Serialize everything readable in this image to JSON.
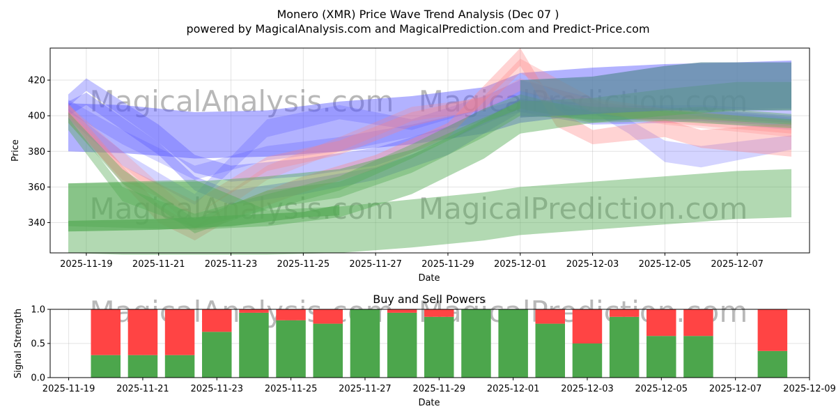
{
  "title_line1": "Monero (XMR) Price Wave Trend Analysis (Dec 07 )",
  "title_line2": "powered by MagicalAnalysis.com and MagicalPrediction.com and Predict-Price.com",
  "watermarks": [
    "MagicalAnalysis.com",
    "MagicalPrediction.com",
    "MagicalAnalysis.com",
    "MagicalPrediction.com",
    "MagicalAnalysis.com",
    "MagicalPrediction.com"
  ],
  "colors": {
    "buy": "#4ca64c",
    "sell": "#ff4444",
    "blue": "#5555ff",
    "red": "#ff8080",
    "green": "#55aa55",
    "teal": "#5a8a9a"
  },
  "chart_data": [
    {
      "type": "area",
      "title": "",
      "xlabel": "Date",
      "ylabel": "Price",
      "xlim": [
        "2025-11-18",
        "2025-12-09"
      ],
      "ylim": [
        323,
        438
      ],
      "yticks": [
        340,
        360,
        380,
        400,
        420
      ],
      "xticks": [
        {
          "date": "2025-11-19",
          "label": "2025-11-19"
        },
        {
          "date": "2025-11-21",
          "label": "2025-11-21"
        },
        {
          "date": "2025-11-23",
          "label": "2025-11-23"
        },
        {
          "date": "2025-11-25",
          "label": "2025-11-25"
        },
        {
          "date": "2025-11-27",
          "label": "2025-11-27"
        },
        {
          "date": "2025-11-29",
          "label": "2025-11-29"
        },
        {
          "date": "2025-12-01",
          "label": "2025-12-01"
        },
        {
          "date": "2025-12-03",
          "label": "2025-12-03"
        },
        {
          "date": "2025-12-05",
          "label": "2025-12-05"
        },
        {
          "date": "2025-12-07",
          "label": "2025-12-07"
        }
      ],
      "bands": [
        {
          "name": "blue-wide",
          "color": "blue",
          "opacity": 0.45,
          "x": [
            "2025-11-18T12",
            "2025-11-20",
            "2025-11-22",
            "2025-11-24",
            "2025-11-26",
            "2025-11-28",
            "2025-11-30",
            "2025-12-01",
            "2025-12-03",
            "2025-12-05",
            "2025-12-07",
            "2025-12-08T12"
          ],
          "upper": [
            407,
            406,
            402,
            403,
            408,
            411,
            416,
            424,
            427,
            429,
            430,
            431
          ],
          "lower": [
            380,
            379,
            376,
            377,
            380,
            384,
            390,
            396,
            401,
            403,
            404,
            404
          ]
        },
        {
          "name": "blue-1",
          "color": "blue",
          "opacity": 0.35,
          "x": [
            "2025-11-18T12",
            "2025-11-19",
            "2025-11-21",
            "2025-11-22",
            "2025-11-23",
            "2025-11-25",
            "2025-11-27",
            "2025-11-29",
            "2025-12-01",
            "2025-12-03",
            "2025-12-05",
            "2025-12-06",
            "2025-12-08T12"
          ],
          "upper": [
            412,
            421,
            395,
            378,
            372,
            376,
            382,
            394,
            414,
            405,
            406,
            406,
            403
          ],
          "lower": [
            405,
            414,
            385,
            368,
            363,
            366,
            372,
            386,
            404,
            397,
            398,
            399,
            396
          ]
        },
        {
          "name": "blue-2",
          "color": "blue",
          "opacity": 0.35,
          "x": [
            "2025-11-18T12",
            "2025-11-19",
            "2025-11-21",
            "2025-11-22",
            "2025-11-23",
            "2025-11-25",
            "2025-11-27",
            "2025-11-29",
            "2025-12-01",
            "2025-12-03",
            "2025-12-05",
            "2025-12-06",
            "2025-12-08T12"
          ],
          "upper": [
            408,
            413,
            385,
            366,
            358,
            364,
            371,
            386,
            410,
            402,
            403,
            404,
            400
          ],
          "lower": [
            400,
            406,
            378,
            358,
            350,
            356,
            364,
            378,
            402,
            395,
            396,
            397,
            394
          ]
        },
        {
          "name": "blue-3",
          "color": "blue",
          "opacity": 0.25,
          "x": [
            "2025-11-18T12",
            "2025-11-20",
            "2025-11-22",
            "2025-11-24",
            "2025-11-26",
            "2025-11-28",
            "2025-11-30",
            "2025-12-01",
            "2025-12-03",
            "2025-12-04",
            "2025-12-05",
            "2025-12-06",
            "2025-12-08T12"
          ],
          "upper": [
            404,
            380,
            356,
            398,
            406,
            398,
            411,
            420,
            410,
            398,
            386,
            383,
            389
          ],
          "lower": [
            398,
            372,
            350,
            388,
            398,
            392,
            404,
            414,
            402,
            390,
            374,
            371,
            381
          ]
        },
        {
          "name": "blue-4",
          "color": "blue",
          "opacity": 0.25,
          "x": [
            "2025-11-18T12",
            "2025-11-20",
            "2025-11-22",
            "2025-11-24",
            "2025-11-26",
            "2025-11-28",
            "2025-11-30",
            "2025-12-01",
            "2025-12-03",
            "2025-12-05",
            "2025-12-08T12"
          ],
          "upper": [
            409,
            392,
            372,
            383,
            388,
            395,
            404,
            409,
            407,
            405,
            399
          ],
          "lower": [
            402,
            384,
            364,
            375,
            380,
            388,
            397,
            402,
            400,
            398,
            392
          ]
        },
        {
          "name": "red-1",
          "color": "red",
          "opacity": 0.35,
          "x": [
            "2025-11-18T12",
            "2025-11-20",
            "2025-11-21",
            "2025-11-22",
            "2025-11-23",
            "2025-11-25",
            "2025-11-27",
            "2025-11-29",
            "2025-12-01",
            "2025-12-02",
            "2025-12-03",
            "2025-12-05",
            "2025-12-06",
            "2025-12-08T12"
          ],
          "upper": [
            407,
            372,
            350,
            338,
            350,
            366,
            378,
            396,
            438,
            404,
            392,
            398,
            392,
            396
          ],
          "lower": [
            399,
            362,
            340,
            330,
            342,
            357,
            370,
            388,
            428,
            394,
            384,
            388,
            382,
            377
          ]
        },
        {
          "name": "red-2",
          "color": "red",
          "opacity": 0.3,
          "x": [
            "2025-11-18T12",
            "2025-11-20",
            "2025-11-22",
            "2025-11-24",
            "2025-11-26",
            "2025-11-28",
            "2025-11-30",
            "2025-12-01",
            "2025-12-03",
            "2025-12-05",
            "2025-12-08T12"
          ],
          "upper": [
            403,
            372,
            352,
            377,
            386,
            402,
            411,
            432,
            410,
            404,
            397
          ],
          "lower": [
            396,
            364,
            344,
            369,
            378,
            394,
            404,
            424,
            402,
            396,
            390
          ]
        },
        {
          "name": "red-3",
          "color": "red",
          "opacity": 0.25,
          "x": [
            "2025-11-18T12",
            "2025-11-20",
            "2025-11-22",
            "2025-11-24",
            "2025-11-26",
            "2025-11-28",
            "2025-11-30",
            "2025-12-01",
            "2025-12-03",
            "2025-12-05",
            "2025-12-08T12"
          ],
          "upper": [
            406,
            380,
            344,
            372,
            388,
            405,
            410,
            421,
            409,
            402,
            394
          ],
          "lower": [
            400,
            372,
            336,
            364,
            380,
            397,
            403,
            414,
            402,
            395,
            388
          ]
        },
        {
          "name": "green-upper",
          "color": "green",
          "opacity": 0.4,
          "x": [
            "2025-11-18T12",
            "2025-11-20",
            "2025-11-22",
            "2025-11-24",
            "2025-11-26",
            "2025-11-28",
            "2025-11-30",
            "2025-12-01",
            "2025-12-03",
            "2025-12-05",
            "2025-12-06",
            "2025-12-08T12"
          ],
          "upper": [
            402,
            370,
            342,
            358,
            363,
            378,
            398,
            409,
            405,
            404,
            405,
            401
          ],
          "lower": [
            396,
            362,
            334,
            348,
            354,
            368,
            388,
            400,
            398,
            398,
            398,
            395
          ]
        },
        {
          "name": "green-upper-2",
          "color": "green",
          "opacity": 0.4,
          "x": [
            "2025-11-18T12",
            "2025-11-20",
            "2025-11-22",
            "2025-11-24",
            "2025-11-26",
            "2025-11-28",
            "2025-11-30",
            "2025-12-01",
            "2025-12-03",
            "2025-12-05",
            "2025-12-08T12"
          ],
          "upper": [
            399,
            360,
            345,
            356,
            366,
            384,
            404,
            412,
            402,
            403,
            398
          ],
          "lower": [
            392,
            352,
            337,
            347,
            358,
            376,
            396,
            404,
            396,
            397,
            393
          ]
        },
        {
          "name": "green-wide",
          "color": "green",
          "opacity": 0.45,
          "x": [
            "2025-11-18T12",
            "2025-11-22",
            "2025-11-24",
            "2025-11-26",
            "2025-11-28",
            "2025-11-30",
            "2025-12-01",
            "2025-12-03",
            "2025-12-05",
            "2025-12-07",
            "2025-12-08T12"
          ],
          "upper": [
            362,
            363,
            366,
            370,
            381,
            399,
            408,
            410,
            415,
            419,
            419
          ],
          "lower": [
            338,
            336,
            338,
            343,
            356,
            376,
            390,
            396,
            400,
            403,
            403
          ]
        },
        {
          "name": "green-low",
          "color": "green",
          "opacity": 0.45,
          "x": [
            "2025-11-18T12",
            "2025-11-20",
            "2025-11-22",
            "2025-11-24",
            "2025-11-26",
            "2025-11-28",
            "2025-11-30",
            "2025-12-01",
            "2025-12-03",
            "2025-12-05",
            "2025-12-07",
            "2025-12-08T12"
          ],
          "upper": [
            362,
            363,
            364,
            347,
            349,
            353,
            357,
            360,
            363,
            366,
            369,
            370
          ],
          "lower": [
            323,
            322,
            322,
            322,
            323,
            326,
            330,
            333,
            336,
            339,
            342,
            343
          ]
        },
        {
          "name": "green-dark",
          "color": "green",
          "opacity": 0.7,
          "x": [
            "2025-11-18T12",
            "2025-11-21",
            "2025-11-23",
            "2025-11-25",
            "2025-11-26"
          ],
          "upper": [
            341,
            342,
            344,
            346,
            350
          ],
          "lower": [
            335,
            336,
            338,
            343,
            344
          ]
        },
        {
          "name": "teal-block",
          "color": "teal",
          "opacity": 0.7,
          "x": [
            "2025-12-01",
            "2025-12-03",
            "2025-12-05",
            "2025-12-06",
            "2025-12-08T12"
          ],
          "upper": [
            420,
            422,
            428,
            430,
            430
          ],
          "lower": [
            399,
            401,
            403,
            403,
            403
          ]
        }
      ]
    },
    {
      "type": "bar",
      "title": "Buy and Sell Powers",
      "xlabel": "Date",
      "ylabel": "Signal Strength",
      "ylim": [
        0,
        1
      ],
      "yticks": [
        {
          "v": 0,
          "label": "0.0"
        },
        {
          "v": 0.5,
          "label": "0.5"
        },
        {
          "v": 1,
          "label": "1.0"
        }
      ],
      "xlim": [
        "2025-11-18T12",
        "2025-12-09"
      ],
      "xticks": [
        "2025-11-19",
        "2025-11-21",
        "2025-11-23",
        "2025-11-25",
        "2025-11-27",
        "2025-11-29",
        "2025-12-01",
        "2025-12-03",
        "2025-12-05",
        "2025-12-07",
        "2025-12-09"
      ],
      "series": [
        {
          "name": "Buy",
          "color": "buy"
        },
        {
          "name": "Sell",
          "color": "sell"
        }
      ],
      "bars": [
        {
          "date": "2025-11-20",
          "buy": 0.33
        },
        {
          "date": "2025-11-21",
          "buy": 0.33
        },
        {
          "date": "2025-11-22",
          "buy": 0.33
        },
        {
          "date": "2025-11-23",
          "buy": 0.67
        },
        {
          "date": "2025-11-24",
          "buy": 0.95
        },
        {
          "date": "2025-11-25",
          "buy": 0.84
        },
        {
          "date": "2025-11-26",
          "buy": 0.79
        },
        {
          "date": "2025-11-27",
          "buy": 1.0
        },
        {
          "date": "2025-11-28",
          "buy": 0.95
        },
        {
          "date": "2025-11-29",
          "buy": 0.89
        },
        {
          "date": "2025-11-30",
          "buy": 1.0
        },
        {
          "date": "2025-12-01",
          "buy": 1.0
        },
        {
          "date": "2025-12-02",
          "buy": 0.79
        },
        {
          "date": "2025-12-03",
          "buy": 0.5
        },
        {
          "date": "2025-12-04",
          "buy": 0.89
        },
        {
          "date": "2025-12-05",
          "buy": 0.61
        },
        {
          "date": "2025-12-06",
          "buy": 0.61
        },
        {
          "date": "2025-12-08",
          "buy": 0.39
        }
      ]
    }
  ]
}
